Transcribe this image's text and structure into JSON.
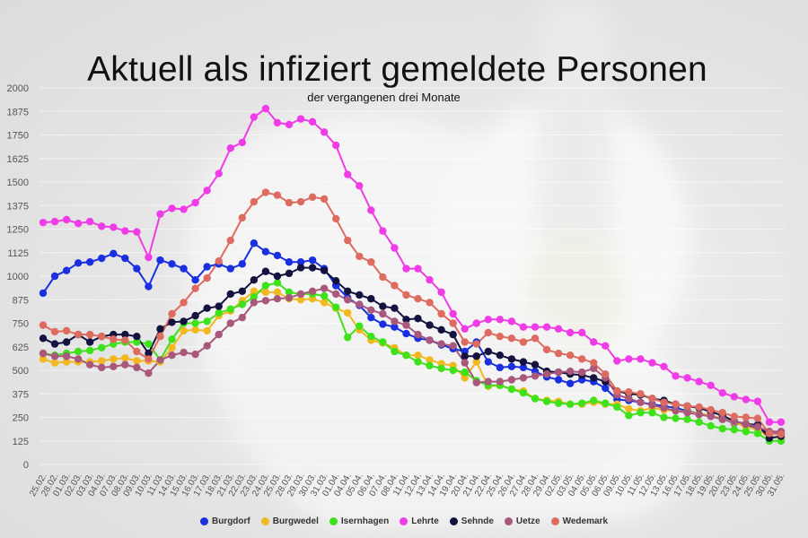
{
  "title": "Aktuell als infiziert gemeldete Personen",
  "subtitle": "der vergangenen drei Monate",
  "colors": {
    "Burgdorf": "#1a2fe0",
    "Burgwedel": "#f2b820",
    "Isernhagen": "#3ee21a",
    "Lehrte": "#f03ce6",
    "Sehnde": "#14123f",
    "Uetze": "#a9577a",
    "Wedemark": "#de6b60"
  },
  "chart_data": {
    "type": "line",
    "title": "Aktuell als infiziert gemeldete Personen",
    "subtitle": "der vergangenen drei Monate",
    "ylim": [
      0,
      2000
    ],
    "yticks": [
      0,
      125,
      250,
      375,
      500,
      625,
      750,
      875,
      1000,
      1125,
      1250,
      1375,
      1500,
      1625,
      1750,
      1875,
      2000
    ],
    "grid": true,
    "legend_position": "bottom",
    "x_labels": [
      "25.02.",
      "28.02.",
      "01.03.",
      "02.03.",
      "03.03.",
      "04.03.",
      "07.03.",
      "08.03.",
      "09.03.",
      "10.03.",
      "11.03.",
      "14.03.",
      "15.03.",
      "16.03.",
      "17.03.",
      "18.03.",
      "21.03.",
      "22.03.",
      "23.03.",
      "24.03.",
      "25.03.",
      "28.03.",
      "29.03.",
      "30.03.",
      "31.03.",
      "01.04.",
      "04.04.",
      "05.04.",
      "06.04.",
      "07.04.",
      "08.04.",
      "11.04.",
      "12.04.",
      "13.04.",
      "14.04.",
      "19.04.",
      "20.04.",
      "21.04.",
      "22.04.",
      "25.04.",
      "26.04.",
      "27.04.",
      "28.04.",
      "29.04.",
      "02.05.",
      "03.05.",
      "04.05.",
      "05.05.",
      "06.05.",
      "09.05.",
      "10.05.",
      "11.05.",
      "12.05.",
      "13.05.",
      "16.05.",
      "17.05.",
      "18.05.",
      "19.05.",
      "20.05.",
      "23.05.",
      "24.05.",
      "25.05.",
      "30.05.",
      "31.05."
    ],
    "series": [
      {
        "name": "Burgdorf",
        "values": [
          910,
          1000,
          1030,
          1070,
          1075,
          1095,
          1120,
          1095,
          1040,
          945,
          1085,
          1065,
          1040,
          980,
          1050,
          1065,
          1040,
          1065,
          1175,
          1130,
          1110,
          1075,
          1075,
          1085,
          1040,
          950,
          885,
          845,
          780,
          745,
          730,
          695,
          670,
          660,
          635,
          615,
          600,
          650,
          545,
          515,
          520,
          515,
          495,
          465,
          450,
          430,
          450,
          440,
          405,
          345,
          340,
          330,
          320,
          310,
          300,
          285,
          270,
          260,
          240,
          220,
          210,
          195,
          165,
          165
        ]
      },
      {
        "name": "Burgwedel",
        "values": [
          560,
          540,
          545,
          545,
          545,
          550,
          560,
          565,
          550,
          550,
          545,
          620,
          710,
          715,
          710,
          790,
          815,
          870,
          920,
          915,
          915,
          880,
          875,
          880,
          860,
          830,
          805,
          715,
          660,
          645,
          620,
          580,
          580,
          555,
          535,
          525,
          460,
          545,
          415,
          420,
          400,
          390,
          350,
          340,
          335,
          320,
          320,
          330,
          320,
          320,
          295,
          285,
          300,
          290,
          285,
          280,
          270,
          260,
          240,
          225,
          200,
          185,
          145,
          145
        ]
      },
      {
        "name": "Isernhagen",
        "values": [
          590,
          580,
          590,
          600,
          605,
          620,
          640,
          650,
          650,
          640,
          555,
          665,
          750,
          750,
          760,
          805,
          825,
          850,
          890,
          950,
          965,
          915,
          905,
          905,
          895,
          835,
          675,
          735,
          680,
          650,
          600,
          580,
          545,
          525,
          510,
          500,
          490,
          445,
          420,
          420,
          400,
          380,
          350,
          335,
          325,
          320,
          325,
          340,
          325,
          305,
          260,
          275,
          275,
          250,
          245,
          240,
          225,
          205,
          190,
          185,
          175,
          165,
          125,
          125
        ]
      },
      {
        "name": "Lehrte",
        "values": [
          1285,
          1290,
          1300,
          1280,
          1290,
          1265,
          1260,
          1240,
          1235,
          1100,
          1330,
          1360,
          1355,
          1390,
          1455,
          1545,
          1680,
          1710,
          1845,
          1890,
          1815,
          1805,
          1835,
          1820,
          1765,
          1695,
          1540,
          1480,
          1350,
          1240,
          1150,
          1040,
          1040,
          980,
          915,
          800,
          720,
          750,
          770,
          770,
          760,
          730,
          730,
          730,
          720,
          700,
          700,
          650,
          630,
          550,
          560,
          560,
          540,
          520,
          470,
          460,
          440,
          420,
          380,
          360,
          345,
          335,
          225,
          225
        ]
      },
      {
        "name": "Sehnde",
        "values": [
          670,
          640,
          650,
          690,
          650,
          680,
          690,
          690,
          680,
          590,
          720,
          755,
          760,
          790,
          830,
          840,
          905,
          920,
          980,
          1025,
          1000,
          1015,
          1045,
          1045,
          1030,
          975,
          920,
          900,
          880,
          840,
          830,
          770,
          775,
          740,
          715,
          690,
          575,
          575,
          600,
          580,
          560,
          545,
          530,
          495,
          490,
          480,
          475,
          460,
          440,
          390,
          375,
          370,
          350,
          340,
          320,
          310,
          300,
          280,
          260,
          230,
          215,
          210,
          140,
          150
        ]
      },
      {
        "name": "Uetze",
        "values": [
          590,
          575,
          575,
          560,
          530,
          515,
          520,
          530,
          515,
          485,
          555,
          580,
          595,
          585,
          630,
          690,
          750,
          780,
          860,
          870,
          880,
          885,
          905,
          920,
          935,
          905,
          875,
          850,
          820,
          800,
          760,
          740,
          690,
          660,
          640,
          630,
          540,
          435,
          440,
          440,
          450,
          460,
          470,
          480,
          490,
          495,
          490,
          510,
          460,
          370,
          350,
          330,
          315,
          300,
          285,
          275,
          265,
          255,
          240,
          230,
          215,
          200,
          175,
          175
        ]
      },
      {
        "name": "Wedemark",
        "values": [
          740,
          705,
          710,
          690,
          690,
          680,
          665,
          660,
          600,
          560,
          680,
          800,
          860,
          935,
          990,
          1080,
          1190,
          1310,
          1395,
          1445,
          1430,
          1390,
          1395,
          1420,
          1410,
          1305,
          1190,
          1105,
          1075,
          995,
          950,
          900,
          880,
          860,
          800,
          750,
          650,
          640,
          700,
          680,
          670,
          650,
          670,
          610,
          590,
          580,
          560,
          540,
          480,
          390,
          385,
          375,
          350,
          330,
          320,
          310,
          305,
          290,
          275,
          255,
          250,
          245,
          165,
          160
        ]
      }
    ]
  }
}
